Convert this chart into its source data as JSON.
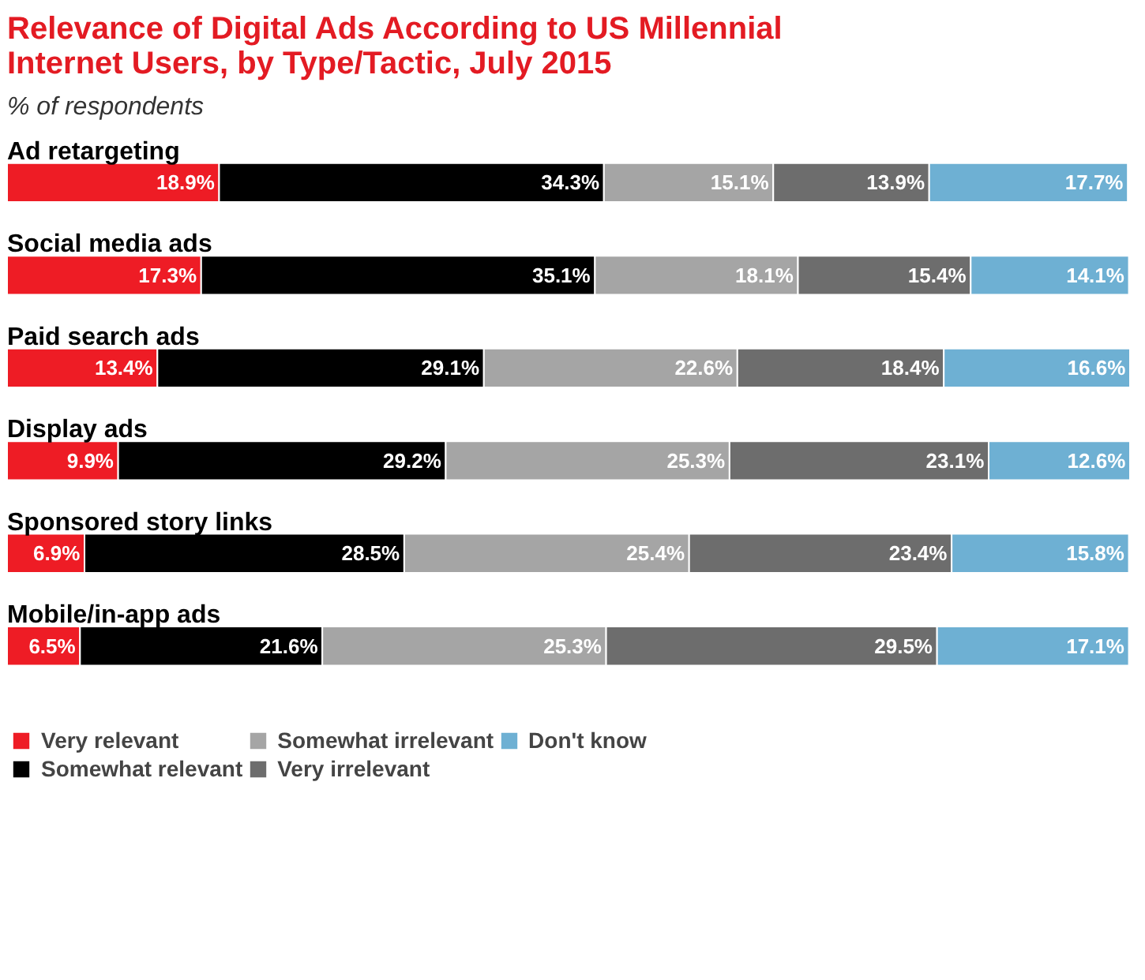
{
  "chart_data": {
    "type": "bar",
    "orientation": "horizontal",
    "stacked": true,
    "title": "Relevance of Digital Ads According to US Millennial Internet Users, by Type/Tactic, July 2015",
    "subtitle": "% of respondents",
    "categories": [
      "Ad retargeting",
      "Social media ads",
      "Paid search ads",
      "Display ads",
      "Sponsored story links",
      "Mobile/in-app ads"
    ],
    "series": [
      {
        "name": "Very relevant",
        "color": "#ee1c25",
        "values": [
          18.9,
          17.3,
          13.4,
          9.9,
          6.9,
          6.5
        ],
        "value_labels": [
          "18.9%",
          "17.3%",
          "13.4%",
          "9.9%",
          "6.9%",
          "6.5%"
        ]
      },
      {
        "name": "Somewhat relevant",
        "color": "#000000",
        "values": [
          34.3,
          35.1,
          29.1,
          29.2,
          28.5,
          21.6
        ],
        "value_labels": [
          "34.3%",
          "35.1%",
          "29.1%",
          "29.2%",
          "28.5%",
          "21.6%"
        ]
      },
      {
        "name": "Somewhat irrelevant",
        "color": "#a5a5a5",
        "values": [
          15.1,
          18.1,
          22.6,
          25.3,
          25.4,
          25.3
        ],
        "value_labels": [
          "15.1%",
          "18.1%",
          "22.6%",
          "25.3%",
          "25.4%",
          "25.3%"
        ]
      },
      {
        "name": "Very irrelevant",
        "color": "#6d6d6d",
        "values": [
          13.9,
          15.4,
          18.4,
          23.1,
          23.4,
          29.5
        ],
        "value_labels": [
          "13.9%",
          "15.4%",
          "18.4%",
          "23.1%",
          "23.4%",
          "29.5%"
        ]
      },
      {
        "name": "Don't know",
        "color": "#6eb0d3",
        "values": [
          17.7,
          14.1,
          16.6,
          12.6,
          15.8,
          17.1
        ],
        "value_labels": [
          "17.7%",
          "14.1%",
          "16.6%",
          "12.6%",
          "15.8%",
          "17.1%"
        ]
      }
    ],
    "legend": "bottom",
    "grid": false,
    "tick_labels": false
  }
}
